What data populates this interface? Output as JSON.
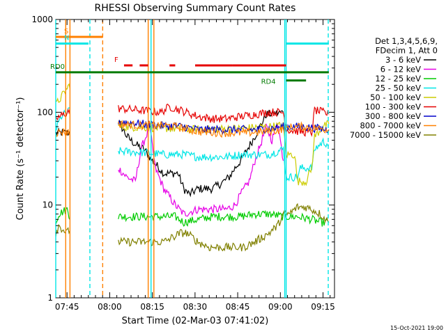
{
  "chart_data": {
    "type": "line",
    "title": "RHESSI Observing Summary Count Rates",
    "xlabel": "Start Time (02-Mar-03 07:41:02)",
    "ylabel": "Count Rate (s⁻¹ detector⁻¹)",
    "x_unit": "minutes since 07:41:02",
    "xlim": [
      0,
      98
    ],
    "ylim": [
      1,
      1000
    ],
    "yscale": "log",
    "x_tick_labels": [
      "07:45",
      "08:00",
      "08:15",
      "08:30",
      "08:45",
      "09:00",
      "09:15"
    ],
    "y_tick_labels": [
      "1",
      "10",
      "100",
      "1000"
    ],
    "legend": {
      "position": "right",
      "header_lines": [
        "Det 1,3,4,5,6,9,",
        "FDecim 1, Att 0"
      ],
      "entries": [
        {
          "label": "3 - 6 keV",
          "color": "#000000"
        },
        {
          "label": "6 - 12 keV",
          "color": "#e600e6"
        },
        {
          "label": "12 - 25 keV",
          "color": "#00cc00"
        },
        {
          "label": "25 - 50 keV",
          "color": "#00e6e6"
        },
        {
          "label": "50 - 100 keV",
          "color": "#cccc00"
        },
        {
          "label": "100 - 300 keV",
          "color": "#e60000"
        },
        {
          "label": "300 - 800 keV",
          "color": "#0000cc"
        },
        {
          "label": "800 - 7000 keV",
          "color": "#ff8000"
        },
        {
          "label": "7000 - 15000 keV",
          "color": "#808000"
        }
      ]
    },
    "series": [
      {
        "name": "3 - 6 keV",
        "color": "#000000",
        "x": [
          0,
          5,
          22,
          25,
          28,
          31,
          34,
          38,
          43,
          45,
          47,
          50,
          53,
          55,
          58,
          61,
          63,
          65,
          70,
          74,
          80
        ],
        "y": [
          60,
          60,
          80,
          55,
          45,
          40,
          30,
          22,
          22,
          15,
          13,
          15,
          15,
          15,
          17,
          20,
          25,
          30,
          55,
          95,
          100
        ]
      },
      {
        "name": "6 - 12 keV",
        "color": "#e600e6",
        "x": [
          22,
          25,
          28,
          30,
          33,
          35,
          38,
          42,
          45,
          50,
          55,
          60,
          63,
          65,
          68,
          70,
          72,
          74,
          76,
          78,
          80
        ],
        "y": [
          25,
          20,
          18,
          40,
          70,
          25,
          15,
          10,
          8,
          9,
          9,
          9,
          10,
          13,
          18,
          30,
          45,
          70,
          50,
          80,
          30
        ]
      },
      {
        "name": "12 - 25 keV",
        "color": "#00cc00",
        "x": [
          0,
          1,
          4,
          5,
          22,
          30,
          37,
          42,
          45,
          55,
          65,
          70,
          75,
          80,
          85,
          90,
          93,
          96
        ],
        "y": [
          6.5,
          8,
          9,
          7.5,
          7.5,
          7.5,
          7.5,
          7.5,
          6.5,
          7.5,
          7.5,
          8,
          8,
          7.5,
          7.5,
          7,
          6.5,
          6.5
        ]
      },
      {
        "name": "25 - 50 keV",
        "color": "#00e6e6",
        "x": [
          0,
          2,
          4,
          5,
          22,
          30,
          38,
          45,
          50,
          55,
          60,
          65,
          70,
          75,
          78,
          80,
          81,
          85,
          86,
          90,
          91,
          94,
          96
        ],
        "y": [
          65,
          90,
          100,
          105,
          38,
          37,
          35,
          35,
          33,
          33,
          33,
          35,
          35,
          35,
          38,
          40,
          20,
          20,
          25,
          25,
          40,
          48,
          45
        ]
      },
      {
        "name": "50 - 100 keV",
        "color": "#cccc00",
        "x": [
          0,
          4,
          5,
          22,
          35,
          50,
          65,
          75,
          80,
          81,
          84,
          85,
          88,
          90,
          91,
          94,
          96
        ],
        "y": [
          120,
          180,
          200,
          70,
          68,
          65,
          67,
          70,
          72,
          35,
          35,
          18,
          18,
          25,
          55,
          70,
          75
        ]
      },
      {
        "name": "100 - 300 keV",
        "color": "#e60000",
        "x": [
          0,
          3,
          5,
          22,
          30,
          37,
          40,
          42,
          50,
          55,
          60,
          65,
          70,
          75,
          78,
          80,
          81,
          86,
          90,
          91,
          94,
          96
        ],
        "y": [
          85,
          95,
          105,
          110,
          105,
          100,
          115,
          110,
          90,
          85,
          85,
          90,
          95,
          100,
          100,
          100,
          65,
          62,
          60,
          105,
          100,
          95
        ]
      },
      {
        "name": "300 - 800 keV",
        "color": "#0000cc",
        "x": [
          22,
          30,
          37,
          45,
          50,
          60,
          70,
          78,
          80,
          85,
          90,
          96
        ],
        "y": [
          80,
          75,
          72,
          70,
          65,
          65,
          65,
          68,
          70,
          70,
          68,
          65
        ]
      },
      {
        "name": "800 - 7000 keV",
        "color": "#ff8000",
        "x": [
          0,
          3,
          5,
          22,
          30,
          38,
          42,
          50,
          58,
          66,
          74,
          80,
          81,
          86,
          90,
          96
        ],
        "y": [
          60,
          62,
          60,
          75,
          72,
          72,
          70,
          62,
          60,
          60,
          62,
          65,
          68,
          70,
          68,
          65
        ]
      },
      {
        "name": "7000 - 15000 keV",
        "color": "#808000",
        "x": [
          0,
          1,
          4,
          5,
          22,
          30,
          38,
          44,
          46,
          50,
          54,
          58,
          62,
          66,
          70,
          75,
          78,
          80,
          82,
          85,
          88,
          90,
          93,
          96
        ],
        "y": [
          5,
          6,
          5,
          5.5,
          4,
          4,
          4,
          5,
          5,
          4,
          3.5,
          3.5,
          3.5,
          3.5,
          4,
          5,
          6,
          8,
          8,
          9.5,
          9.5,
          9,
          8,
          6.5
        ]
      }
    ],
    "vertical_markers": [
      {
        "x": 0,
        "color": "#00e6e6",
        "style": "solid"
      },
      {
        "x": 3.5,
        "color": "#ff8000",
        "style": "solid"
      },
      {
        "x": 5,
        "color": "#ff8000",
        "style": "solid"
      },
      {
        "x": 12,
        "color": "#00e6e6",
        "style": "dashed"
      },
      {
        "x": 16.5,
        "color": "#ff8000",
        "style": "dashed"
      },
      {
        "x": 32.5,
        "color": "#ff8000",
        "style": "solid"
      },
      {
        "x": 33.5,
        "color": "#00e6e6",
        "style": "solid"
      },
      {
        "x": 34.5,
        "color": "#ff8000",
        "style": "solid"
      },
      {
        "x": 80.5,
        "color": "#00e6e6",
        "style": "solid"
      },
      {
        "x": 81,
        "color": "#00e6e6",
        "style": "solid"
      },
      {
        "x": 95.8,
        "color": "#00e6e6",
        "style": "dashed"
      }
    ],
    "flag_bars": [
      {
        "label": "S",
        "color": "#ff8000",
        "segments": [
          [
            0,
            16.5
          ]
        ],
        "level": 650
      },
      {
        "label": "N",
        "color": "#00e6e6",
        "segments": [
          [
            0,
            11.5
          ]
        ],
        "level": 550
      },
      {
        "label": "F",
        "color": "#e60000",
        "segments": [
          [
            24,
            27
          ],
          [
            29.5,
            32.5
          ],
          [
            40,
            42
          ],
          [
            49,
            62
          ],
          [
            62,
            81
          ]
        ],
        "level": 320
      },
      {
        "label": "",
        "color": "#00e6e6",
        "segments": [
          [
            81,
            96
          ]
        ],
        "level": 550
      },
      {
        "label": "RD0",
        "color": "#007a00",
        "segments": [
          [
            0,
            96
          ]
        ],
        "level": 270
      },
      {
        "label": "RD4",
        "color": "#007a00",
        "segments": [
          [
            81,
            88
          ]
        ],
        "level": 220
      }
    ],
    "footer_date": "15-Oct-2021 19:00"
  }
}
